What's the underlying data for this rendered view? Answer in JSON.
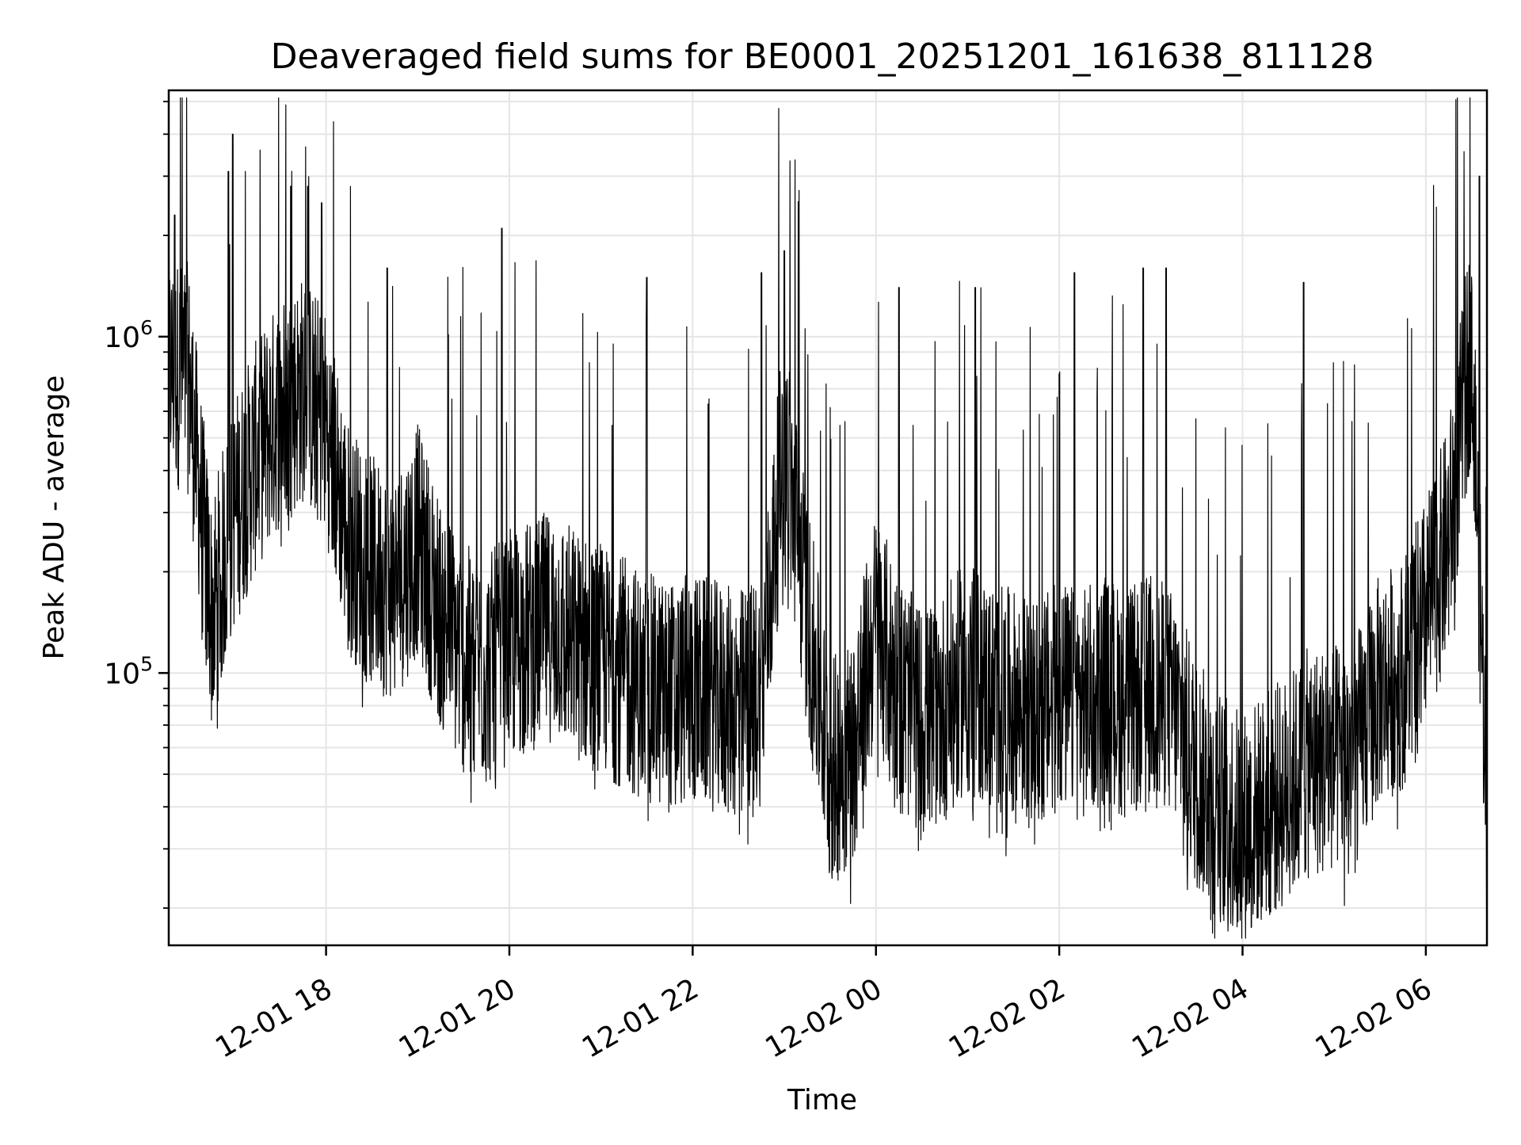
{
  "chart_data": {
    "type": "line",
    "title": "Deaveraged field sums for BE0001_20251201_161638_811128",
    "xlabel": "Time",
    "ylabel": "Peak ADU - average",
    "y_scale": "log",
    "xlim": [
      "2025-12-01 16:17",
      "2025-12-02 06:40"
    ],
    "ylim": [
      15500,
      5400000
    ],
    "x_ticks": [
      "12-01 18",
      "12-01 20",
      "12-01 22",
      "12-02 00",
      "12-02 02",
      "12-02 04",
      "12-02 06"
    ],
    "y_ticks": [
      {
        "value": 100000,
        "base": "10",
        "exp": "5"
      },
      {
        "value": 1000000,
        "base": "10",
        "exp": "6"
      }
    ],
    "grid": true,
    "line_color": "#000000",
    "series": [
      {
        "x": [
          "2025-12-01 16:17",
          "2025-12-01 16:30",
          "2025-12-01 16:45",
          "2025-12-01 17:00",
          "2025-12-01 17:15",
          "2025-12-01 17:30",
          "2025-12-01 17:45",
          "2025-12-01 18:00",
          "2025-12-01 18:15",
          "2025-12-01 18:30",
          "2025-12-01 18:45",
          "2025-12-01 19:00",
          "2025-12-01 19:15",
          "2025-12-01 19:30",
          "2025-12-01 19:45",
          "2025-12-01 20:00",
          "2025-12-01 20:15",
          "2025-12-01 20:30",
          "2025-12-01 20:45",
          "2025-12-01 21:00",
          "2025-12-01 21:15",
          "2025-12-01 21:30",
          "2025-12-01 21:45",
          "2025-12-01 22:00",
          "2025-12-01 22:15",
          "2025-12-01 22:30",
          "2025-12-01 22:45",
          "2025-12-01 23:00",
          "2025-12-01 23:15",
          "2025-12-01 23:30",
          "2025-12-01 23:45",
          "2025-12-02 00:00",
          "2025-12-02 00:15",
          "2025-12-02 00:30",
          "2025-12-02 00:45",
          "2025-12-02 01:00",
          "2025-12-02 01:15",
          "2025-12-02 01:30",
          "2025-12-02 01:45",
          "2025-12-02 02:00",
          "2025-12-02 02:15",
          "2025-12-02 02:30",
          "2025-12-02 02:45",
          "2025-12-02 03:00",
          "2025-12-02 03:15",
          "2025-12-02 03:30",
          "2025-12-02 03:45",
          "2025-12-02 04:00",
          "2025-12-02 04:15",
          "2025-12-02 04:30",
          "2025-12-02 04:45",
          "2025-12-02 05:00",
          "2025-12-02 05:15",
          "2025-12-02 05:30",
          "2025-12-02 05:45",
          "2025-12-02 06:00",
          "2025-12-02 06:15",
          "2025-12-02 06:30",
          "2025-12-02 06:40"
        ],
        "y": [
          800000,
          750000,
          150000,
          300000,
          450000,
          600000,
          700000,
          550000,
          250000,
          200000,
          180000,
          250000,
          150000,
          110000,
          100000,
          120000,
          130000,
          140000,
          120000,
          110000,
          100000,
          90000,
          85000,
          90000,
          85000,
          80000,
          90000,
          500000,
          150000,
          50000,
          60000,
          140000,
          90000,
          70000,
          80000,
          100000,
          85000,
          80000,
          75000,
          85000,
          80000,
          90000,
          80000,
          90000,
          80000,
          50000,
          40000,
          35000,
          40000,
          45000,
          55000,
          55000,
          60000,
          90000,
          100000,
          150000,
          250000,
          1000000,
          40000
        ],
        "spikes": [
          {
            "x": "2025-12-01 16:21",
            "y": 2300000
          },
          {
            "x": "2025-12-01 16:56",
            "y": 3100000
          },
          {
            "x": "2025-12-01 16:59",
            "y": 4000000
          },
          {
            "x": "2025-12-01 17:37",
            "y": 2800000
          },
          {
            "x": "2025-12-01 17:48",
            "y": 2800000
          },
          {
            "x": "2025-12-01 17:57",
            "y": 2500000
          },
          {
            "x": "2025-12-01 18:40",
            "y": 1600000
          },
          {
            "x": "2025-12-01 19:55",
            "y": 2100000
          },
          {
            "x": "2025-12-01 21:30",
            "y": 1500000
          },
          {
            "x": "2025-12-01 22:45",
            "y": 1550000
          },
          {
            "x": "2025-12-01 23:00",
            "y": 1800000
          },
          {
            "x": "2025-12-02 00:15",
            "y": 1400000
          },
          {
            "x": "2025-12-02 01:05",
            "y": 1400000
          },
          {
            "x": "2025-12-02 02:10",
            "y": 1550000
          },
          {
            "x": "2025-12-02 02:55",
            "y": 1600000
          },
          {
            "x": "2025-12-02 03:10",
            "y": 1600000
          },
          {
            "x": "2025-12-02 04:40",
            "y": 1450000
          },
          {
            "x": "2025-12-02 06:35",
            "y": 3000000
          }
        ]
      }
    ]
  }
}
